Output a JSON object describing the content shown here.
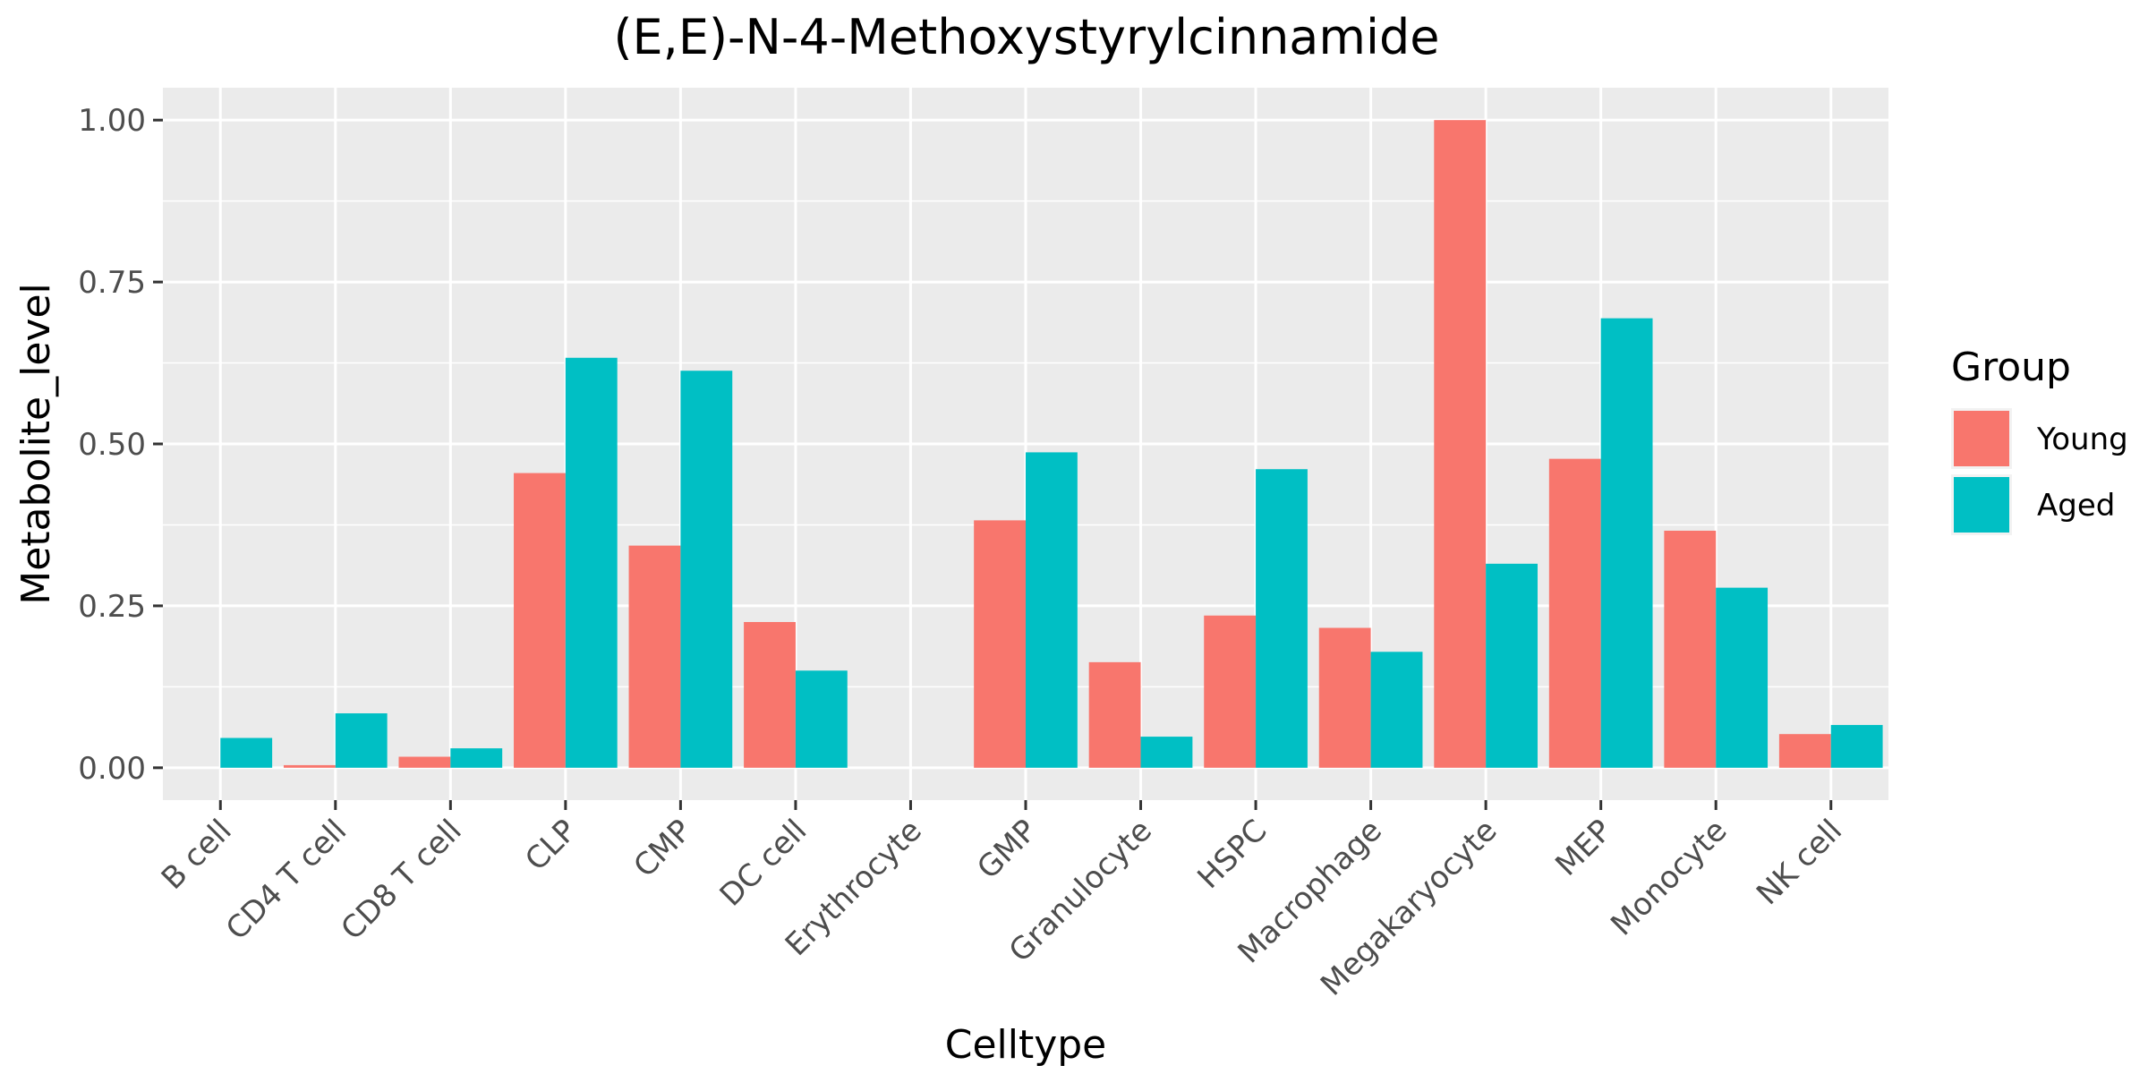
{
  "chart_data": {
    "type": "bar",
    "title": "(E,E)-N-4-Methoxystyrylcinnamide",
    "xlabel": "Celltype",
    "ylabel": "Metabolite_level",
    "ylim": [
      -0.05,
      1.05
    ],
    "yticks": [
      "0.00",
      "0.25",
      "0.50",
      "0.75",
      "1.00"
    ],
    "ytick_values": [
      0,
      0.25,
      0.5,
      0.75,
      1.0
    ],
    "grid": true,
    "legend": {
      "title": "Group",
      "position": "right"
    },
    "categories": [
      "B cell",
      "CD4 T cell",
      "CD8 T cell",
      "CLP",
      "CMP",
      "DC cell",
      "Erythrocyte",
      "GMP",
      "Granulocyte",
      "HSPC",
      "Macrophage",
      "Megakaryocyte",
      "MEP",
      "Monocyte",
      "NK cell"
    ],
    "series": [
      {
        "name": "Young",
        "color": "#F8766D",
        "values": [
          0,
          0.004,
          0.017,
          0.455,
          0.343,
          0.225,
          0,
          0.382,
          0.163,
          0.235,
          0.216,
          1.0,
          0.477,
          0.366,
          0.052
        ]
      },
      {
        "name": "Aged",
        "color": "#00BFC4",
        "values": [
          0.046,
          0.084,
          0.03,
          0.633,
          0.613,
          0.15,
          0,
          0.487,
          0.048,
          0.461,
          0.179,
          0.315,
          0.694,
          0.278,
          0.066
        ]
      }
    ]
  }
}
